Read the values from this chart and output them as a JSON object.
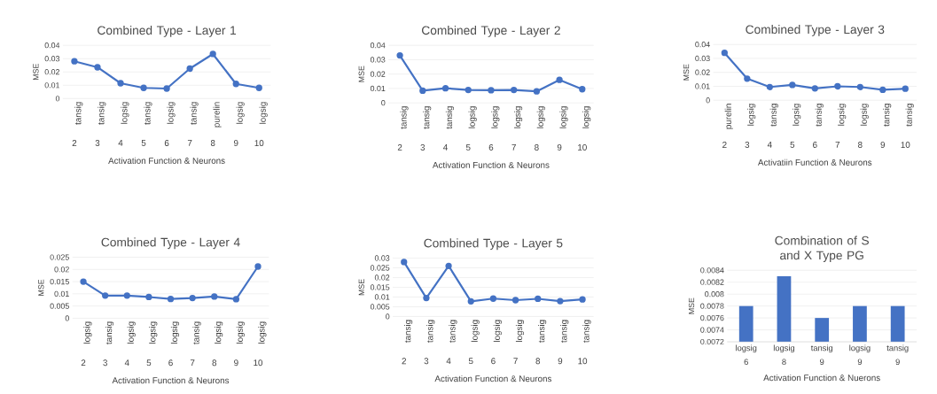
{
  "chart_data": [
    {
      "type": "line",
      "title": "Combined Type - Layer 1",
      "xlabel": "Activation Function & Neurons",
      "ylabel": "MSE",
      "x": [
        2,
        3,
        4,
        5,
        6,
        7,
        8,
        9,
        10
      ],
      "xlim": [
        1.5,
        10.5
      ],
      "xticks": [
        2,
        3,
        4,
        5,
        6,
        7,
        8,
        9,
        10
      ],
      "ylim": [
        0,
        0.04
      ],
      "yticks": [
        0,
        0.01,
        0.02,
        0.03,
        0.04
      ],
      "grid": "y",
      "marker": "circle",
      "color": "#4472c4",
      "values": [
        0.028,
        0.0235,
        0.0115,
        0.008,
        0.0075,
        0.0225,
        0.0335,
        0.011,
        0.008
      ],
      "annotations": [
        "tansig",
        "tansig",
        "logsig",
        "tansig",
        "logsig",
        "tansig",
        "purelin",
        "logsig",
        "logsig"
      ]
    },
    {
      "type": "line",
      "title": "Combined Type - Layer 2",
      "xlabel": "Activation Function & Neurons",
      "ylabel": "MSE",
      "x": [
        2,
        3,
        4,
        5,
        6,
        7,
        8,
        9,
        10
      ],
      "xlim": [
        1.5,
        10.5
      ],
      "xticks": [
        2,
        3,
        4,
        5,
        6,
        7,
        8,
        9,
        10
      ],
      "ylim": [
        0,
        0.04
      ],
      "yticks": [
        0,
        0.01,
        0.02,
        0.03,
        0.04
      ],
      "grid": "y",
      "marker": "circle",
      "color": "#4472c4",
      "values": [
        0.033,
        0.0085,
        0.0102,
        0.009,
        0.0088,
        0.009,
        0.008,
        0.016,
        0.0095
      ],
      "annotations": [
        "tansig",
        "tansig",
        "tansig",
        "logsig",
        "logsig",
        "logsig",
        "logsig",
        "logsig",
        "logsig"
      ]
    },
    {
      "type": "line",
      "title": "Combined Type - Layer 3",
      "xlabel": "Activatiin Function & Neurons",
      "ylabel": "MSE",
      "x": [
        2,
        3,
        4,
        5,
        6,
        7,
        8,
        9,
        10
      ],
      "xlim": [
        1.5,
        10.5
      ],
      "xticks": [
        2,
        3,
        4,
        5,
        6,
        7,
        8,
        9,
        10
      ],
      "ylim": [
        0,
        0.04
      ],
      "yticks": [
        0,
        0.01,
        0.02,
        0.03,
        0.04
      ],
      "grid": "y",
      "marker": "circle",
      "color": "#4472c4",
      "values": [
        0.034,
        0.0155,
        0.0095,
        0.011,
        0.0085,
        0.01,
        0.0095,
        0.0075,
        0.0083
      ],
      "annotations": [
        "purelin",
        "logsig",
        "tansig",
        "logsig",
        "tansig",
        "logsig",
        "logsig",
        "tansig",
        "tansig"
      ]
    },
    {
      "type": "line",
      "title": "Combined Type - Layer 4",
      "xlabel": "Activation Function & Neurons",
      "ylabel": "MSE",
      "x": [
        2,
        3,
        4,
        5,
        6,
        7,
        8,
        9,
        10
      ],
      "xlim": [
        1.5,
        10.5
      ],
      "xticks": [
        2,
        3,
        4,
        5,
        6,
        7,
        8,
        9,
        10
      ],
      "ylim": [
        0,
        0.025
      ],
      "yticks": [
        0,
        0.005,
        0.01,
        0.015,
        0.02,
        0.025
      ],
      "grid": "y",
      "marker": "circle",
      "color": "#4472c4",
      "values": [
        0.015,
        0.0093,
        0.0093,
        0.0087,
        0.0079,
        0.0083,
        0.0089,
        0.0078,
        0.0212
      ],
      "annotations": [
        "logsig",
        "tansig",
        "logsig",
        "logsig",
        "logsig",
        "tansig",
        "logsig",
        "logsig",
        "logsig"
      ]
    },
    {
      "type": "line",
      "title": "Combined Type - Layer 5",
      "xlabel": "Activation Function & Neurons",
      "ylabel": "MSE",
      "x": [
        2,
        3,
        4,
        5,
        6,
        7,
        8,
        9,
        10
      ],
      "xlim": [
        1.5,
        10.5
      ],
      "xticks": [
        2,
        3,
        4,
        5,
        6,
        7,
        8,
        9,
        10
      ],
      "ylim": [
        0,
        0.03
      ],
      "yticks": [
        0,
        0.005,
        0.01,
        0.015,
        0.02,
        0.025,
        0.03
      ],
      "grid": "y",
      "marker": "circle",
      "color": "#4472c4",
      "values": [
        0.028,
        0.0095,
        0.026,
        0.0078,
        0.0092,
        0.0084,
        0.0091,
        0.0079,
        0.0088
      ],
      "annotations": [
        "tansig",
        "tansig",
        "tansig",
        "logsig",
        "logsig",
        "logsig",
        "tansig",
        "tansig",
        "tansig"
      ]
    },
    {
      "type": "bar",
      "title": "Combination of S and X Type PG",
      "xlabel": "Activation Function & Nuerons",
      "ylabel": "MSE",
      "categories": [
        "logsig 6",
        "logsig 8",
        "tansig 9",
        "logsig 9",
        "tansig 9"
      ],
      "ylim": [
        0.0072,
        0.0084
      ],
      "yticks": [
        0.0072,
        0.0074,
        0.0076,
        0.0078,
        0.008,
        0.0082,
        0.0084
      ],
      "grid": "y",
      "color": "#4472c4",
      "values": [
        0.0078,
        0.0083,
        0.0076,
        0.0078,
        0.0078
      ]
    }
  ]
}
